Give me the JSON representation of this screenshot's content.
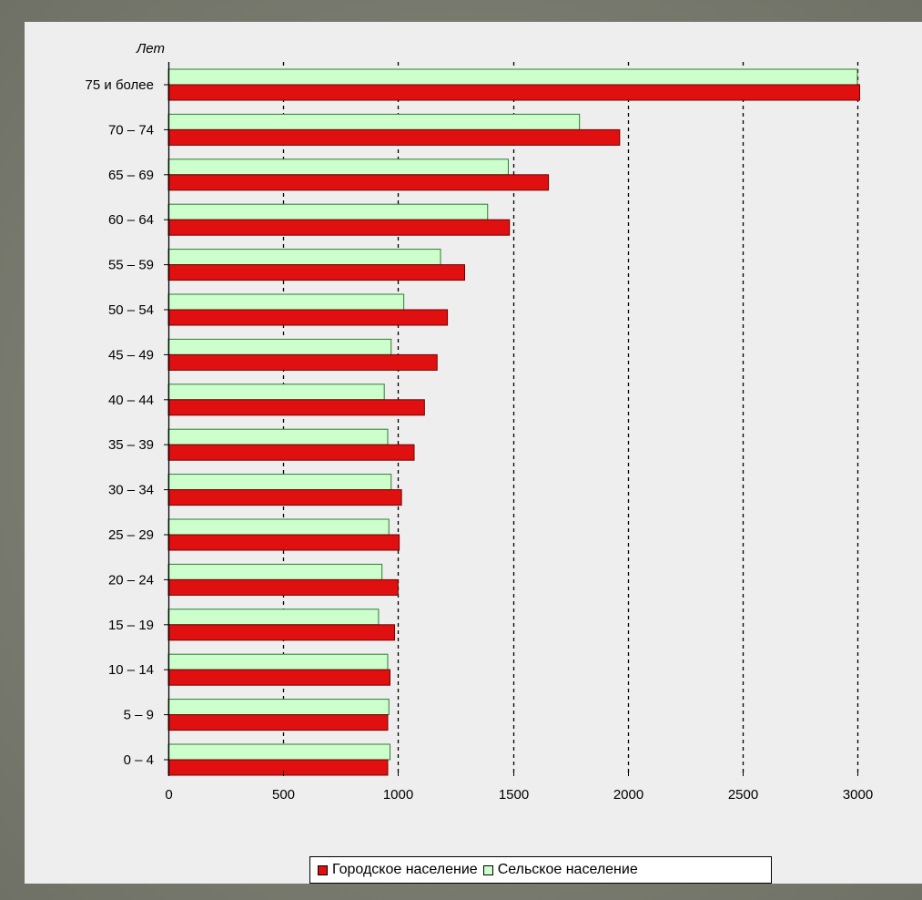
{
  "chart_data": {
    "type": "bar",
    "orientation": "horizontal",
    "unit_label": "Лет",
    "categories": [
      "75 и более",
      "70 – 74",
      "65 – 69",
      "60 – 64",
      "55 – 59",
      "50 – 54",
      "45 – 49",
      "40 – 44",
      "35 – 39",
      "30 – 34",
      "25 – 29",
      "20 – 24",
      "15 – 19",
      "10 – 14",
      "5 – 9",
      "0 – 4"
    ],
    "series": [
      {
        "name": "Сельское население",
        "color": "#ccffcc",
        "edge": "#2e7d32",
        "values": [
          3000,
          1790,
          1480,
          1390,
          1185,
          1025,
          970,
          940,
          955,
          970,
          960,
          930,
          915,
          955,
          960,
          965
        ]
      },
      {
        "name": "Городское население",
        "color": "#e01010",
        "edge": "#700000",
        "values": [
          3010,
          1965,
          1655,
          1485,
          1290,
          1215,
          1170,
          1115,
          1070,
          1015,
          1005,
          1000,
          985,
          965,
          955,
          955
        ]
      }
    ],
    "xlim": [
      0,
      3000
    ],
    "xticks": [
      "0",
      "500",
      "1000",
      "1500",
      "2000",
      "2500",
      "3000"
    ],
    "grid": {
      "vertical": true,
      "style": "dashed"
    },
    "legend": "bottom-center"
  }
}
